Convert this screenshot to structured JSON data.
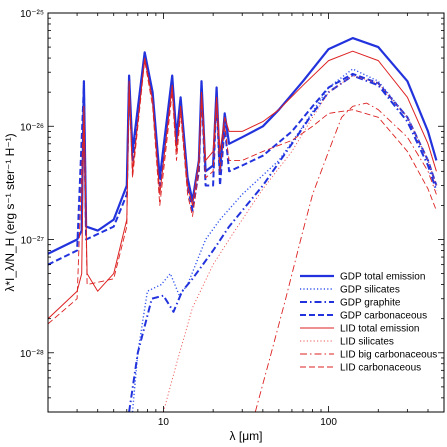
{
  "chart_data": {
    "type": "line",
    "title": "",
    "xlabel": "λ [μm]",
    "ylabel": "λ*I_λ/N_H (erg s⁻¹ ster⁻¹ H⁻¹)",
    "xscale": "log",
    "yscale": "log",
    "xlim": [
      2,
      500
    ],
    "ylim": [
      3e-29,
      1e-25
    ],
    "x_ticks": [
      {
        "v": 10,
        "label": "10"
      },
      {
        "v": 100,
        "label": "100"
      }
    ],
    "y_ticks": [
      {
        "v": 1e-28,
        "label": "10⁻²⁸"
      },
      {
        "v": 1e-27,
        "label": "10⁻²⁷"
      },
      {
        "v": 1e-26,
        "label": "10⁻²⁶"
      },
      {
        "v": 1e-25,
        "label": "10⁻²⁵"
      }
    ],
    "legend_position": "bottom-right",
    "grid": false,
    "series": [
      {
        "name": "GDP total emission",
        "color": "#2233dd",
        "style": "solid",
        "width": 2.2,
        "points": [
          [
            2,
            7.5e-28
          ],
          [
            3,
            1e-27
          ],
          [
            3.2,
            1.2e-27
          ],
          [
            3.3,
            2.5e-26
          ],
          [
            3.4,
            1.3e-27
          ],
          [
            4,
            1.2e-27
          ],
          [
            5,
            1.5e-27
          ],
          [
            6,
            3e-27
          ],
          [
            6.2,
            2.8e-26
          ],
          [
            6.5,
            6e-27
          ],
          [
            7.7,
            4.5e-26
          ],
          [
            8.6,
            2e-26
          ],
          [
            9.5,
            3.5e-27
          ],
          [
            11.3,
            2.8e-26
          ],
          [
            12,
            8e-27
          ],
          [
            12.7,
            1.8e-26
          ],
          [
            14,
            3.5e-27
          ],
          [
            15,
            2.2e-27
          ],
          [
            16.4,
            5e-27
          ],
          [
            17,
            2.5e-26
          ],
          [
            18,
            4e-27
          ],
          [
            20,
            4.5e-27
          ],
          [
            21,
            2.2e-26
          ],
          [
            22,
            4e-27
          ],
          [
            23.5,
            1.3e-26
          ],
          [
            25,
            7e-27
          ],
          [
            30,
            8e-27
          ],
          [
            40,
            1e-26
          ],
          [
            50,
            1.4e-26
          ],
          [
            70,
            2.5e-26
          ],
          [
            100,
            4.8e-26
          ],
          [
            140,
            6e-26
          ],
          [
            200,
            5e-26
          ],
          [
            300,
            2.5e-26
          ],
          [
            400,
            9e-27
          ],
          [
            450,
            5e-27
          ]
        ]
      },
      {
        "name": "GDP silicates",
        "color": "#3355ee",
        "style": "dotted",
        "width": 1.4,
        "points": [
          [
            6.5,
            3e-29
          ],
          [
            7,
            1e-28
          ],
          [
            8,
            3.5e-28
          ],
          [
            9.7,
            4e-28
          ],
          [
            11,
            5e-28
          ],
          [
            12.5,
            3.2e-28
          ],
          [
            14,
            4e-28
          ],
          [
            18,
            1e-27
          ],
          [
            22,
            1.5e-27
          ],
          [
            30,
            2.5e-27
          ],
          [
            50,
            5e-27
          ],
          [
            70,
            1e-26
          ],
          [
            100,
            2.2e-26
          ],
          [
            140,
            3.2e-26
          ],
          [
            200,
            2.5e-26
          ],
          [
            300,
            1.2e-26
          ],
          [
            400,
            5e-27
          ],
          [
            450,
            3e-27
          ]
        ]
      },
      {
        "name": "GDP graphite",
        "color": "#2233dd",
        "style": "dashdot",
        "width": 2,
        "points": [
          [
            6.2,
            3e-29
          ],
          [
            7,
            1e-28
          ],
          [
            8.5,
            3e-28
          ],
          [
            10,
            3.2e-28
          ],
          [
            11.5,
            2.3e-28
          ],
          [
            13,
            3.5e-28
          ],
          [
            15,
            4.5e-28
          ],
          [
            20,
            8e-28
          ],
          [
            25,
            1.3e-27
          ],
          [
            30,
            1.8e-27
          ],
          [
            40,
            3e-27
          ],
          [
            60,
            7e-27
          ],
          [
            80,
            1.3e-26
          ],
          [
            100,
            2e-26
          ],
          [
            140,
            2.8e-26
          ],
          [
            200,
            2.3e-26
          ],
          [
            300,
            1.1e-26
          ],
          [
            400,
            4.5e-27
          ],
          [
            450,
            2.7e-27
          ]
        ]
      },
      {
        "name": "GDP carbonaceous",
        "color": "#2233dd",
        "style": "dashed",
        "width": 2,
        "points": [
          [
            2,
            6e-28
          ],
          [
            3,
            8e-28
          ],
          [
            3.3,
            2.3e-26
          ],
          [
            3.4,
            1e-27
          ],
          [
            5,
            1.3e-27
          ],
          [
            6,
            2.5e-27
          ],
          [
            6.2,
            2.6e-26
          ],
          [
            6.5,
            5e-27
          ],
          [
            7.7,
            4.2e-26
          ],
          [
            8.6,
            1.8e-26
          ],
          [
            9.5,
            3e-27
          ],
          [
            11.3,
            2.5e-26
          ],
          [
            12,
            7e-27
          ],
          [
            12.7,
            1.6e-26
          ],
          [
            14,
            3e-27
          ],
          [
            15,
            1.8e-27
          ],
          [
            16.4,
            4e-27
          ],
          [
            17,
            2.2e-26
          ],
          [
            18,
            3e-27
          ],
          [
            20,
            3e-27
          ],
          [
            21,
            2e-26
          ],
          [
            22,
            3e-27
          ],
          [
            23.5,
            1e-26
          ],
          [
            25,
            4e-27
          ],
          [
            30,
            4.5e-27
          ],
          [
            40,
            5.5e-27
          ],
          [
            60,
            9e-27
          ],
          [
            80,
            1.5e-26
          ],
          [
            100,
            2.2e-26
          ],
          [
            140,
            2.9e-26
          ],
          [
            200,
            2.4e-26
          ],
          [
            300,
            1.2e-26
          ],
          [
            400,
            5e-27
          ],
          [
            450,
            3e-27
          ]
        ]
      },
      {
        "name": "LID total emission",
        "color": "#dd2222",
        "style": "solid",
        "width": 1,
        "points": [
          [
            2,
            2e-28
          ],
          [
            3,
            3.5e-28
          ],
          [
            3.2,
            5e-28
          ],
          [
            3.3,
            1.5e-26
          ],
          [
            3.45,
            5e-28
          ],
          [
            4,
            3.5e-28
          ],
          [
            5,
            5e-28
          ],
          [
            6,
            1.5e-27
          ],
          [
            6.2,
            2.5e-26
          ],
          [
            6.5,
            4e-27
          ],
          [
            7.7,
            4e-26
          ],
          [
            8.6,
            1.7e-26
          ],
          [
            9.5,
            2.5e-27
          ],
          [
            11.3,
            2.3e-26
          ],
          [
            12,
            6e-27
          ],
          [
            12.7,
            1.5e-26
          ],
          [
            14,
            3e-27
          ],
          [
            15,
            2e-27
          ],
          [
            16.4,
            5e-27
          ],
          [
            17,
            2e-26
          ],
          [
            18,
            5e-27
          ],
          [
            20,
            6e-27
          ],
          [
            21,
            1.8e-26
          ],
          [
            22,
            6e-27
          ],
          [
            23.5,
            1.2e-26
          ],
          [
            25,
            9e-27
          ],
          [
            30,
            9e-27
          ],
          [
            40,
            1.1e-26
          ],
          [
            50,
            1.4e-26
          ],
          [
            70,
            2.3e-26
          ],
          [
            100,
            3.8e-26
          ],
          [
            140,
            4.6e-26
          ],
          [
            200,
            3.8e-26
          ],
          [
            300,
            1.8e-26
          ],
          [
            400,
            7e-27
          ],
          [
            450,
            4e-27
          ]
        ]
      },
      {
        "name": "LID silicates",
        "color": "#ee5555",
        "style": "dotted",
        "width": 0.9,
        "points": [
          [
            10,
            3e-29
          ],
          [
            12,
            8e-29
          ],
          [
            15,
            2.5e-28
          ],
          [
            20,
            6e-28
          ],
          [
            25,
            1e-27
          ],
          [
            30,
            1.5e-27
          ],
          [
            40,
            2.8e-27
          ],
          [
            60,
            6e-27
          ],
          [
            80,
            1.2e-26
          ],
          [
            100,
            2e-26
          ],
          [
            140,
            2.8e-26
          ],
          [
            200,
            2.4e-26
          ],
          [
            300,
            1.2e-26
          ],
          [
            400,
            5e-27
          ],
          [
            450,
            3e-27
          ]
        ]
      },
      {
        "name": "LID big carbonaceous",
        "color": "#dd2222",
        "style": "dashdot",
        "width": 0.9,
        "points": [
          [
            36,
            3e-29
          ],
          [
            45,
            1e-28
          ],
          [
            55,
            3e-28
          ],
          [
            70,
            1.2e-27
          ],
          [
            80,
            2.5e-27
          ],
          [
            100,
            6e-27
          ],
          [
            120,
            1.2e-26
          ],
          [
            140,
            1.5e-26
          ],
          [
            170,
            1.6e-26
          ],
          [
            200,
            1.4e-26
          ],
          [
            300,
            8e-27
          ],
          [
            400,
            4e-27
          ],
          [
            450,
            2.5e-27
          ]
        ]
      },
      {
        "name": "LID carbonaceous",
        "color": "#dd2222",
        "style": "dashed",
        "width": 0.9,
        "points": [
          [
            2,
            1.8e-28
          ],
          [
            3,
            3e-28
          ],
          [
            3.3,
            1.4e-26
          ],
          [
            3.45,
            4e-28
          ],
          [
            5,
            4.5e-28
          ],
          [
            6,
            1.3e-27
          ],
          [
            6.2,
            2.3e-26
          ],
          [
            6.5,
            3.5e-27
          ],
          [
            7.7,
            3.8e-26
          ],
          [
            8.6,
            1.5e-26
          ],
          [
            9.5,
            2e-27
          ],
          [
            11.3,
            2e-26
          ],
          [
            12,
            5e-27
          ],
          [
            12.7,
            1.3e-26
          ],
          [
            14,
            2.5e-27
          ],
          [
            15,
            1.6e-27
          ],
          [
            16.4,
            4e-27
          ],
          [
            17,
            1.8e-26
          ],
          [
            18,
            3.5e-27
          ],
          [
            20,
            4e-27
          ],
          [
            21,
            1.6e-26
          ],
          [
            22,
            4e-27
          ],
          [
            23.5,
            1e-26
          ],
          [
            25,
            5e-27
          ],
          [
            30,
            5e-27
          ],
          [
            40,
            6e-27
          ],
          [
            60,
            7.5e-27
          ],
          [
            80,
            1e-26
          ],
          [
            100,
            1.3e-26
          ],
          [
            140,
            1.4e-26
          ],
          [
            200,
            1.2e-26
          ],
          [
            300,
            6e-27
          ],
          [
            400,
            2.8e-27
          ],
          [
            450,
            1.8e-27
          ]
        ]
      }
    ]
  }
}
